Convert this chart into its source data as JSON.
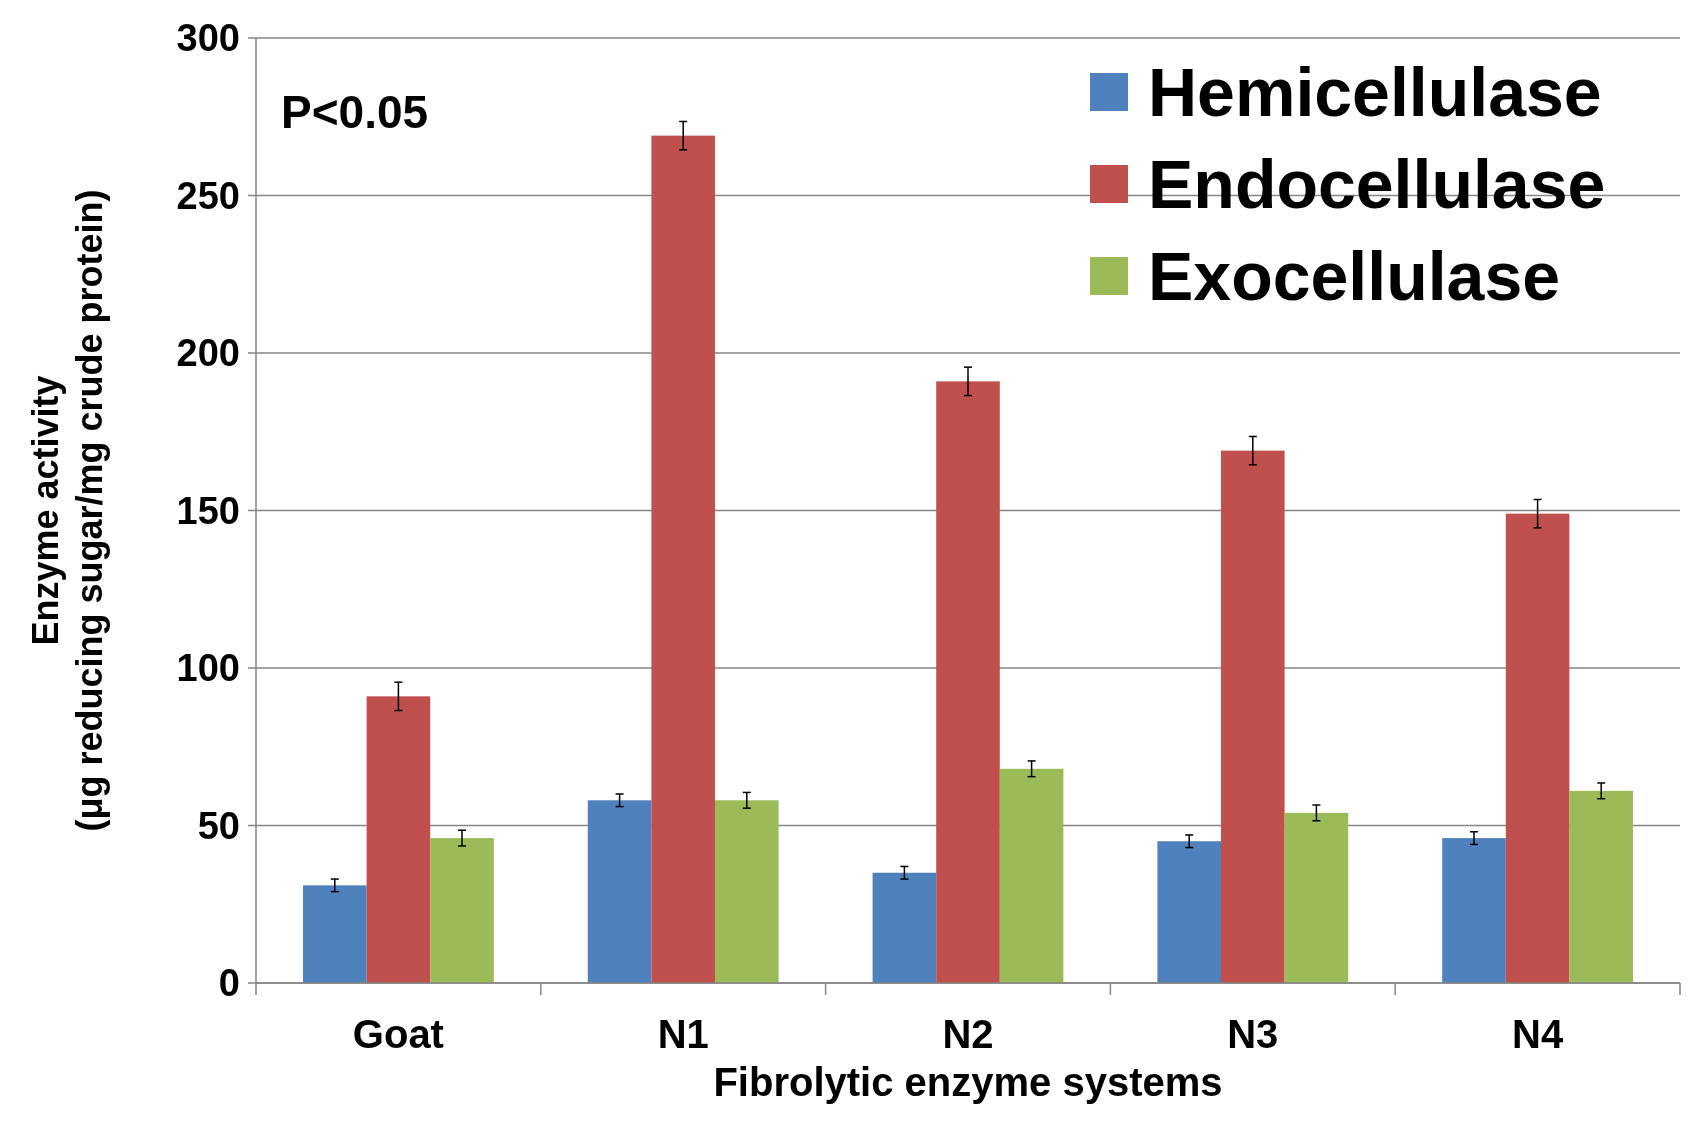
{
  "chart_data": {
    "type": "bar",
    "xlabel": "Fibrolytic enzyme systems",
    "ylabel": "Enzyme activity\n(μg reducing sugar/mg crude protein)",
    "categories": [
      "Goat",
      "N1",
      "N2",
      "N3",
      "N4"
    ],
    "series": [
      {
        "name": "Hemicellulase",
        "color": "#4f81bd",
        "values": [
          31,
          58,
          35,
          45,
          46
        ],
        "errors": [
          2,
          2,
          2,
          2,
          2
        ]
      },
      {
        "name": "Endocellulase",
        "color": "#c0504d",
        "values": [
          91,
          269,
          191,
          169,
          149
        ],
        "errors": [
          4.5,
          4.5,
          4.5,
          4.5,
          4.5
        ]
      },
      {
        "name": "Exocellulase",
        "color": "#9bbb59",
        "values": [
          46,
          58,
          68,
          54,
          61
        ],
        "errors": [
          2.5,
          2.5,
          2.5,
          2.5,
          2.5
        ]
      }
    ],
    "ylim": [
      0,
      300
    ],
    "yticks": [
      0,
      50,
      100,
      150,
      200,
      250,
      300
    ],
    "grid": "y",
    "legend": "top right",
    "annotations": [
      "P<0.05"
    ]
  }
}
